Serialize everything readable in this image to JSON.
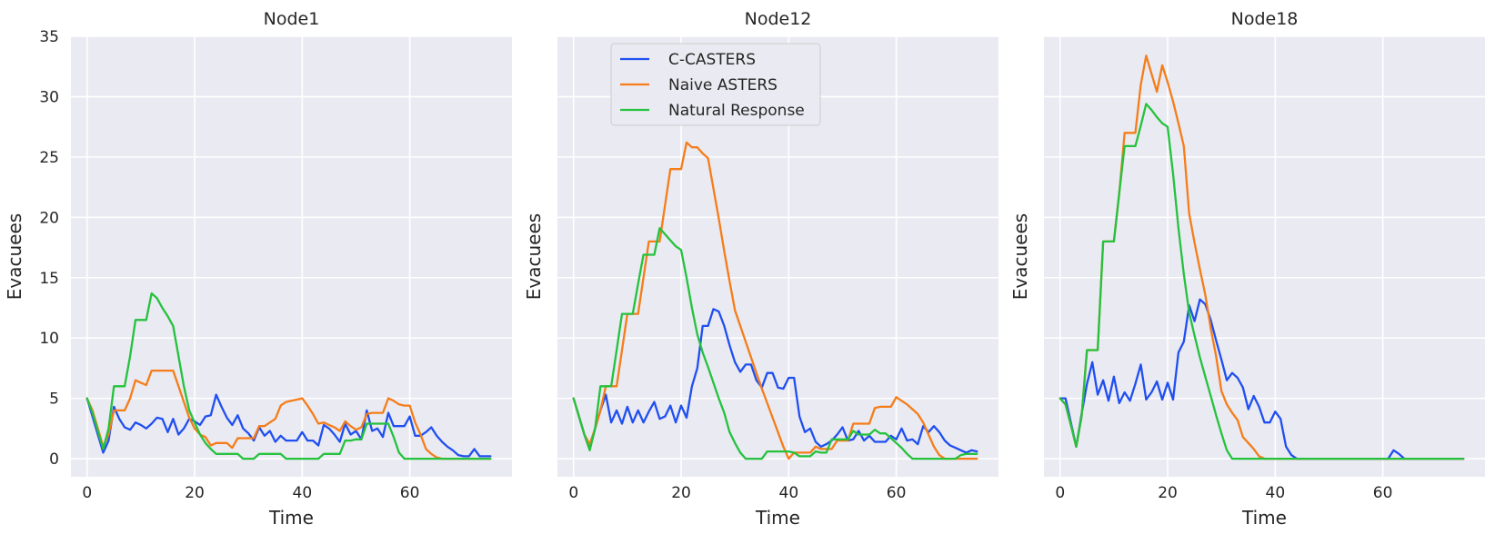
{
  "chart_data": [
    {
      "type": "line",
      "title": "Node1",
      "xlabel": "Time",
      "ylabel": "Evacuees",
      "xlim": [
        -3,
        79
      ],
      "ylim": [
        -1.5,
        35
      ],
      "xticks": [
        0,
        20,
        40,
        60
      ],
      "yticks": [
        0,
        5,
        10,
        15,
        20,
        25,
        30,
        35
      ],
      "x": [
        0,
        1,
        2,
        3,
        4,
        5,
        6,
        7,
        8,
        9,
        10,
        11,
        12,
        13,
        14,
        15,
        16,
        17,
        18,
        19,
        20,
        21,
        22,
        23,
        24,
        25,
        26,
        27,
        28,
        29,
        30,
        31,
        32,
        33,
        34,
        35,
        36,
        37,
        38,
        39,
        40,
        41,
        42,
        43,
        44,
        45,
        46,
        47,
        48,
        49,
        50,
        51,
        52,
        53,
        54,
        55,
        56,
        57,
        58,
        59,
        60,
        61,
        62,
        63,
        64,
        65,
        66,
        67,
        68,
        69,
        70,
        71,
        72,
        73,
        74,
        75
      ],
      "series": [
        {
          "name": "C-CASTERS",
          "values": [
            5,
            3.5,
            2,
            0.5,
            1.5,
            4.3,
            3.3,
            2.6,
            2.4,
            3,
            2.8,
            2.5,
            2.9,
            3.4,
            3.3,
            2.2,
            3.3,
            2,
            2.5,
            3.3,
            3.1,
            2.8,
            3.5,
            3.6,
            5.3,
            4.3,
            3.4,
            2.8,
            3.6,
            2.5,
            2.1,
            1.5,
            2.6,
            1.9,
            2.3,
            1.4,
            1.9,
            1.5,
            1.5,
            1.5,
            2.2,
            1.5,
            1.5,
            1.1,
            2.8,
            2.5,
            2,
            1.4,
            2.9,
            2,
            2.3,
            1.6,
            4,
            2.3,
            2.5,
            1.8,
            3.8,
            2.7,
            2.7,
            2.7,
            3.5,
            1.9,
            1.9,
            2.2,
            2.6,
            1.9,
            1.4,
            1,
            0.7,
            0.3,
            0.2,
            0.2,
            0.8,
            0.2,
            0.2,
            0.2
          ]
        },
        {
          "name": "Naive ASTERS",
          "values": [
            5,
            4,
            2.5,
            1,
            2,
            4,
            4,
            4,
            5,
            6.5,
            6.3,
            6.1,
            7.3,
            7.3,
            7.3,
            7.3,
            7.3,
            6,
            4.7,
            3.4,
            2.5,
            2,
            1.8,
            1.1,
            1.3,
            1.3,
            1.3,
            0.9,
            1.7,
            1.7,
            1.7,
            1.7,
            2.7,
            2.7,
            3,
            3.3,
            4.4,
            4.7,
            4.8,
            4.9,
            5,
            4.4,
            3.7,
            2.9,
            3,
            2.8,
            2.6,
            2.3,
            3.1,
            2.7,
            2.4,
            2.6,
            3.7,
            3.8,
            3.8,
            3.8,
            5,
            4.8,
            4.5,
            4.4,
            4.4,
            3,
            2,
            0.8,
            0.4,
            0.1,
            0,
            0,
            0,
            0,
            0,
            0,
            0,
            0,
            0,
            0
          ]
        },
        {
          "name": "Natural Response",
          "values": [
            5,
            3.8,
            2.3,
            0.8,
            2.5,
            6,
            6,
            6,
            8.5,
            11.5,
            11.5,
            11.5,
            13.7,
            13.3,
            12.5,
            11.8,
            11,
            8.5,
            6,
            4,
            3,
            2,
            1.3,
            0.8,
            0.4,
            0.4,
            0.4,
            0.4,
            0.4,
            0,
            0,
            0,
            0.4,
            0.4,
            0.4,
            0.4,
            0.4,
            0,
            0,
            0,
            0,
            0,
            0,
            0,
            0.4,
            0.4,
            0.4,
            0.4,
            1.5,
            1.5,
            1.6,
            1.6,
            2.9,
            2.9,
            2.9,
            2.9,
            2.9,
            1.8,
            0.5,
            0,
            0,
            0,
            0,
            0,
            0,
            0,
            0,
            0,
            0,
            0,
            0,
            0,
            0,
            0,
            0,
            0
          ]
        }
      ]
    },
    {
      "type": "line",
      "title": "Node12",
      "xlabel": "Time",
      "ylabel": "Evacuees",
      "xlim": [
        -3,
        79
      ],
      "ylim": [
        -1.5,
        35
      ],
      "xticks": [
        0,
        20,
        40,
        60
      ],
      "yticks": [
        0,
        5,
        10,
        15,
        20,
        25,
        30,
        35
      ],
      "legend": {
        "entries": [
          "C-CASTERS",
          "Naive ASTERS",
          "Natural Response"
        ],
        "position": "upper-left"
      },
      "x": [
        0,
        1,
        2,
        3,
        4,
        5,
        6,
        7,
        8,
        9,
        10,
        11,
        12,
        13,
        14,
        15,
        16,
        17,
        18,
        19,
        20,
        21,
        22,
        23,
        24,
        25,
        26,
        27,
        28,
        29,
        30,
        31,
        32,
        33,
        34,
        35,
        36,
        37,
        38,
        39,
        40,
        41,
        42,
        43,
        44,
        45,
        46,
        47,
        48,
        49,
        50,
        51,
        52,
        53,
        54,
        55,
        56,
        57,
        58,
        59,
        60,
        61,
        62,
        63,
        64,
        65,
        66,
        67,
        68,
        69,
        70,
        71,
        72,
        73,
        74,
        75
      ],
      "series": [
        {
          "name": "C-CASTERS",
          "values": [
            5,
            3.5,
            2,
            0.8,
            2.5,
            4,
            5.3,
            3,
            4,
            2.9,
            4.3,
            3,
            4,
            3,
            3.9,
            4.7,
            3.3,
            3.5,
            4.4,
            3,
            4.4,
            3.4,
            6,
            7.5,
            11,
            11,
            12.4,
            12.2,
            11,
            9.4,
            8,
            7.2,
            7.8,
            7.8,
            6.5,
            5.9,
            7.1,
            7.1,
            5.9,
            5.8,
            6.7,
            6.7,
            3.5,
            2.2,
            2.5,
            1.4,
            1,
            1.2,
            1.5,
            2,
            2.6,
            1.5,
            1.6,
            2.3,
            1.5,
            1.9,
            1.4,
            1.4,
            1.4,
            1.9,
            1.6,
            2.5,
            1.5,
            1.6,
            1.2,
            2.7,
            2.2,
            2.7,
            2.2,
            1.5,
            1.1,
            0.9,
            0.7,
            0.5,
            0.7,
            0.6
          ]
        },
        {
          "name": "Naive ASTERS",
          "values": [
            5,
            3.5,
            2,
            1.2,
            2.5,
            4,
            6,
            6,
            6,
            9,
            12,
            12,
            12,
            15,
            18,
            18,
            18,
            21,
            24,
            24,
            24,
            26.2,
            25.8,
            25.8,
            25.3,
            24.9,
            22.4,
            19.9,
            17.2,
            14.7,
            12.3,
            11,
            9.7,
            8.4,
            7.1,
            5.8,
            4.6,
            3.4,
            2.2,
            1,
            0,
            0.5,
            0.5,
            0.5,
            0.5,
            1,
            0.8,
            0.8,
            0.8,
            1.5,
            1.5,
            1.5,
            2.9,
            2.9,
            2.9,
            2.9,
            4.2,
            4.3,
            4.3,
            4.3,
            5.1,
            4.8,
            4.5,
            4.1,
            3.7,
            3,
            2,
            1,
            0.3,
            0,
            0,
            0,
            0,
            0,
            0,
            0
          ]
        },
        {
          "name": "Natural Response",
          "values": [
            5,
            3.5,
            2,
            0.7,
            2.5,
            6,
            6,
            6,
            9,
            12,
            12,
            12,
            14.5,
            16.9,
            16.9,
            16.9,
            19.1,
            18.6,
            18.1,
            17.6,
            17.3,
            15,
            12.5,
            10.3,
            8.8,
            7.6,
            6.3,
            5,
            3.8,
            2.2,
            1.3,
            0.5,
            0,
            0,
            0,
            0,
            0.6,
            0.6,
            0.6,
            0.6,
            0.6,
            0.5,
            0.2,
            0.2,
            0.2,
            0.6,
            0.5,
            0.5,
            1.6,
            1.6,
            1.6,
            1.6,
            2.3,
            2,
            2,
            2,
            2.4,
            2.1,
            2.1,
            1.7,
            1.3,
            0.9,
            0.4,
            0,
            0,
            0,
            0,
            0,
            0,
            0,
            0,
            0,
            0.3,
            0.4,
            0.4,
            0.4
          ]
        }
      ]
    },
    {
      "type": "line",
      "title": "Node18",
      "xlabel": "Time",
      "ylabel": "Evacuees",
      "xlim": [
        -3,
        79
      ],
      "ylim": [
        -1.5,
        35
      ],
      "xticks": [
        0,
        20,
        40,
        60
      ],
      "yticks": [
        0,
        5,
        10,
        15,
        20,
        25,
        30,
        35
      ],
      "x": [
        0,
        1,
        2,
        3,
        4,
        5,
        6,
        7,
        8,
        9,
        10,
        11,
        12,
        13,
        14,
        15,
        16,
        17,
        18,
        19,
        20,
        21,
        22,
        23,
        24,
        25,
        26,
        27,
        28,
        29,
        30,
        31,
        32,
        33,
        34,
        35,
        36,
        37,
        38,
        39,
        40,
        41,
        42,
        43,
        44,
        45,
        46,
        47,
        48,
        49,
        50,
        51,
        52,
        53,
        54,
        55,
        56,
        57,
        58,
        59,
        60,
        61,
        62,
        63,
        64,
        65,
        66,
        67,
        68,
        69,
        70,
        71,
        72,
        73,
        74,
        75
      ],
      "series": [
        {
          "name": "C-CASTERS",
          "values": [
            5,
            5,
            3,
            1,
            3.7,
            6.2,
            8,
            5.3,
            6.5,
            4.8,
            6.8,
            4.6,
            5.5,
            4.8,
            6.2,
            7.8,
            4.9,
            5.5,
            6.4,
            4.9,
            6.3,
            4.9,
            8.8,
            9.7,
            12.7,
            11.4,
            13.2,
            12.8,
            11.5,
            9.8,
            8.2,
            6.5,
            7.1,
            6.7,
            5.9,
            4.1,
            5.2,
            4.3,
            3,
            3,
            3.9,
            3.3,
            1,
            0.3,
            0,
            0,
            0,
            0,
            0,
            0,
            0,
            0,
            0,
            0,
            0,
            0,
            0,
            0,
            0,
            0,
            0,
            0,
            0.7,
            0.4,
            0,
            0,
            0,
            0,
            0,
            0,
            0,
            0,
            0,
            0,
            0,
            0
          ]
        },
        {
          "name": "Naive ASTERS",
          "values": [
            5,
            4.5,
            2.8,
            1,
            3.5,
            9,
            9,
            9,
            18,
            18,
            18,
            22,
            27,
            27,
            27,
            31,
            33.4,
            31.9,
            30.4,
            32.6,
            31.2,
            29.6,
            27.8,
            25.9,
            20.3,
            17.9,
            15.7,
            13.6,
            10.8,
            8.5,
            5.6,
            4.5,
            3.8,
            3.2,
            1.8,
            1.3,
            0.8,
            0.2,
            0,
            0,
            0,
            0,
            0,
            0,
            0,
            0,
            0,
            0,
            0,
            0,
            0,
            0,
            0,
            0,
            0,
            0,
            0,
            0,
            0,
            0,
            0,
            0,
            0,
            0,
            0,
            0,
            0,
            0,
            0,
            0,
            0,
            0,
            0,
            0,
            0,
            0
          ]
        },
        {
          "name": "Natural Response",
          "values": [
            5,
            4.5,
            2.8,
            1,
            3.5,
            9,
            9,
            9,
            18,
            18,
            18,
            22,
            25.9,
            25.9,
            25.9,
            27.6,
            29.4,
            28.9,
            28.3,
            27.8,
            27.5,
            23.6,
            19.1,
            15.3,
            12.1,
            10.2,
            8.4,
            6.8,
            5.2,
            3.6,
            2.1,
            0.7,
            0,
            0,
            0,
            0,
            0,
            0,
            0,
            0,
            0,
            0,
            0,
            0,
            0,
            0,
            0,
            0,
            0,
            0,
            0,
            0,
            0,
            0,
            0,
            0,
            0,
            0,
            0,
            0,
            0,
            0,
            0,
            0,
            0,
            0,
            0,
            0,
            0,
            0,
            0,
            0,
            0,
            0,
            0,
            0
          ]
        }
      ]
    }
  ],
  "colors": {
    "C-CASTERS": "#1f4ff0",
    "Naive ASTERS": "#f57d19",
    "Natural Response": "#24c23d",
    "panel": "#eaeaf2",
    "grid": "#ffffff",
    "text": "#262626"
  }
}
